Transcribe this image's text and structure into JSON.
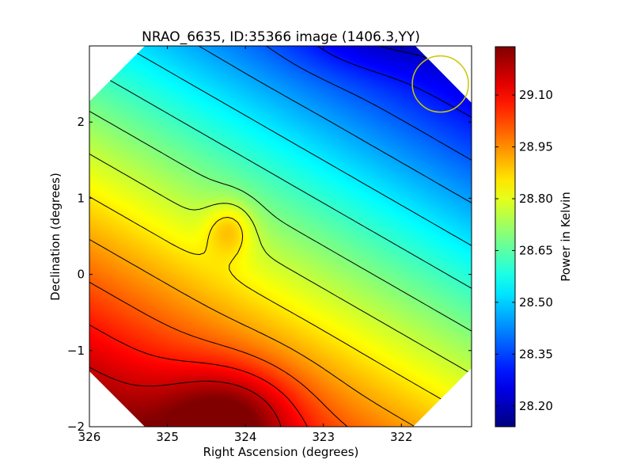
{
  "chart_data": {
    "type": "heatmap",
    "title": "NRAO_6635, ID:35366 image (1406.3,YY)",
    "xlabel": "Right Ascension (degrees)",
    "ylabel": "Declination (degrees)",
    "xlim": [
      326.0,
      321.1
    ],
    "ylim": [
      -2.0,
      3.0
    ],
    "xticks": [
      326,
      325,
      324,
      323,
      322
    ],
    "xtick_labels": [
      "326",
      "325",
      "324",
      "323",
      "322"
    ],
    "yticks": [
      -2,
      -1,
      0,
      1,
      2
    ],
    "ytick_labels": [
      "−2",
      "−1",
      "0",
      "1",
      "2"
    ],
    "colorbar": {
      "label": "Power in Kelvin",
      "range": [
        28.14,
        29.24
      ],
      "ticks": [
        28.2,
        28.35,
        28.5,
        28.65,
        28.8,
        28.95,
        29.1
      ],
      "tick_labels": [
        "28.20",
        "28.35",
        "28.50",
        "28.65",
        "28.80",
        "28.95",
        "29.10"
      ],
      "colormap": "jet"
    },
    "contour_levels": 13,
    "beam_circle": {
      "ra": 321.5,
      "dec": 2.5,
      "radius_deg": 0.36,
      "color": "#c8c800"
    },
    "features": {
      "global_peak": {
        "ra": 324.2,
        "dec": -1.85,
        "value": 29.24
      },
      "global_min": {
        "ra": 322.5,
        "dec": 3.1,
        "value": 28.14
      },
      "local_peak": {
        "ra": 324.2,
        "dec": 0.6,
        "value": 28.78
      }
    },
    "footprint": "octagon",
    "grid": false
  }
}
